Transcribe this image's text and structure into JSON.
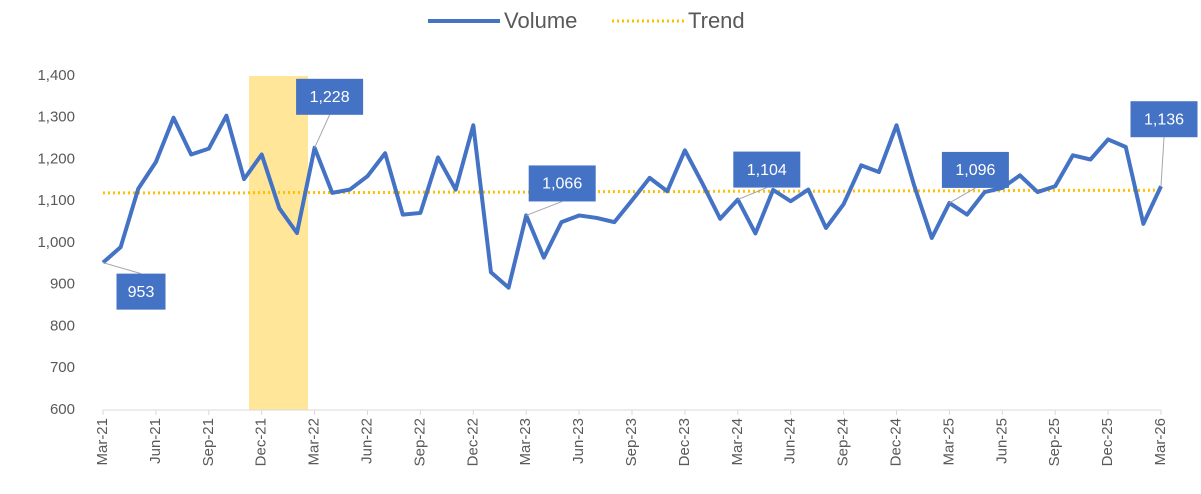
{
  "chart_data": {
    "type": "line",
    "categories": [
      "Mar-21",
      null,
      null,
      "Jun-21",
      null,
      null,
      "Sep-21",
      null,
      null,
      "Dec-21",
      null,
      null,
      "Mar-22",
      null,
      null,
      "Jun-22",
      null,
      null,
      "Sep-22",
      null,
      null,
      "Dec-22",
      null,
      null,
      "Mar-23",
      null,
      null,
      "Jun-23",
      null,
      null,
      "Sep-23",
      null,
      null,
      "Dec-23",
      null,
      null,
      "Mar-24",
      null,
      null,
      "Jun-24",
      null,
      null,
      "Sep-24",
      null,
      null,
      "Dec-24",
      null,
      null,
      "Mar-25",
      null,
      null,
      "Jun-25",
      null,
      null,
      "Sep-25",
      null,
      null,
      "Dec-25",
      null,
      null,
      "Mar-26"
    ],
    "series": [
      {
        "name": "Volume",
        "color": "#4472c4",
        "values": [
          953,
          990,
          1130,
          1194,
          1300,
          1212,
          1226,
          1305,
          1153,
          1212,
          1083,
          1024,
          1228,
          1120,
          1128,
          1160,
          1215,
          1068,
          1072,
          1205,
          1128,
          1282,
          930,
          893,
          1066,
          965,
          1050,
          1066,
          1060,
          1050,
          1102,
          1156,
          1124,
          1222,
          1142,
          1058,
          1104,
          1023,
          1127,
          1100,
          1128,
          1036,
          1093,
          1186,
          1170,
          1282,
          1138,
          1012,
          1096,
          1068,
          1122,
          1132,
          1162,
          1122,
          1136,
          1210,
          1200,
          1248,
          1230,
          1046,
          1136
        ],
        "value_labels": [
          "953",
          null,
          null,
          null,
          null,
          null,
          null,
          null,
          null,
          null,
          null,
          null,
          "1,228",
          null,
          null,
          null,
          null,
          null,
          null,
          null,
          null,
          null,
          null,
          null,
          "1,066",
          null,
          null,
          null,
          null,
          null,
          null,
          null,
          null,
          null,
          null,
          null,
          "1,104",
          null,
          null,
          null,
          null,
          null,
          null,
          null,
          null,
          null,
          null,
          null,
          "1,096",
          null,
          null,
          null,
          null,
          null,
          null,
          null,
          null,
          null,
          null,
          null,
          "1,136"
        ]
      },
      {
        "name": "Trend",
        "color": "#ffc000",
        "style": "dotted",
        "values": [
          1120,
          1120,
          1120,
          1120,
          1120,
          1120,
          1120,
          1120,
          1120,
          1121,
          1121,
          1121,
          1121,
          1121,
          1121,
          1121,
          1121,
          1121,
          1122,
          1122,
          1122,
          1122,
          1122,
          1122,
          1122,
          1122,
          1123,
          1123,
          1123,
          1123,
          1123,
          1123,
          1123,
          1123,
          1123,
          1124,
          1124,
          1124,
          1124,
          1124,
          1124,
          1124,
          1124,
          1125,
          1125,
          1125,
          1125,
          1125,
          1125,
          1125,
          1125,
          1125,
          1126,
          1126,
          1126,
          1126,
          1126,
          1126,
          1126,
          1126,
          1127
        ]
      }
    ],
    "ylim": [
      600,
      1400
    ],
    "yticks": [
      600,
      700,
      800,
      {
        "value": 900,
        "label": "900"
      },
      {
        "value": 1000,
        "label": "1,000"
      },
      {
        "value": 1100,
        "label": "1,100"
      },
      {
        "value": 1200,
        "label": "1,200"
      },
      {
        "value": 1300,
        "label": "1,300"
      },
      {
        "value": 1400,
        "label": "1,400"
      }
    ],
    "grid": false,
    "legend": "top"
  }
}
